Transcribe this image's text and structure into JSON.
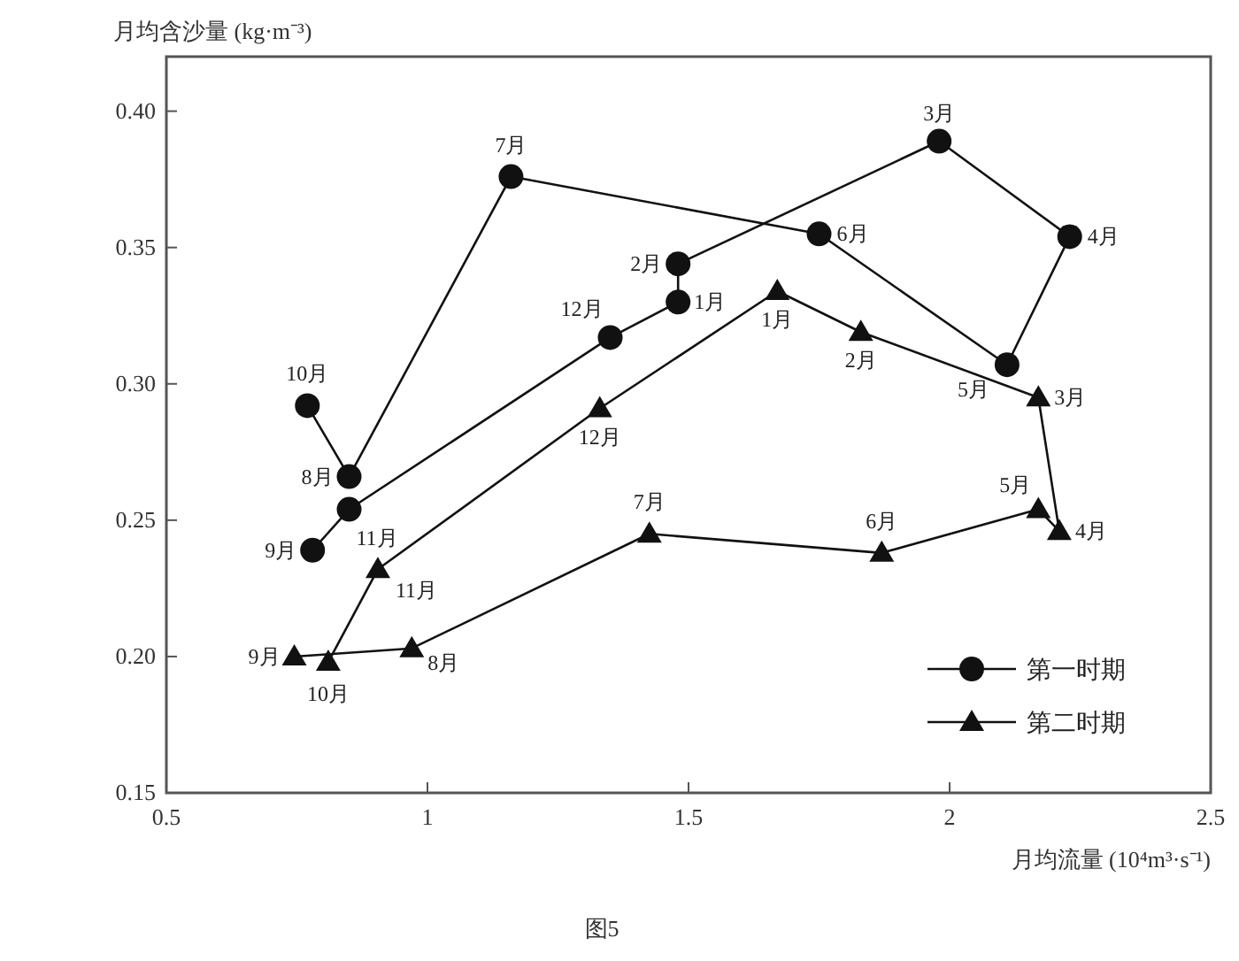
{
  "chart_data": {
    "type": "line",
    "xlabel": "月均流量 (10⁴m³·s⁻¹)",
    "ylabel": "月均含沙量 (kg·m⁻³)",
    "xlim": [
      0.5,
      2.5
    ],
    "xticks": [
      0.5,
      1,
      1.5,
      2,
      2.5
    ],
    "ylim": [
      0.15,
      0.42
    ],
    "yticks": [
      {
        "value": 0.15,
        "label": "0.15"
      },
      {
        "value": 0.2,
        "label": "0.20"
      },
      {
        "value": 0.25,
        "label": "0.25"
      },
      {
        "value": 0.3,
        "label": "0.30"
      },
      {
        "value": 0.35,
        "label": "0.35"
      },
      {
        "value": 0.4,
        "label": "0.40"
      }
    ],
    "grid": false,
    "legend": "bottom right",
    "series": [
      {
        "name": "第一时期",
        "color": "#111111",
        "marker": "circle",
        "x": [
          0.77,
          0.85,
          1.16,
          1.75,
          2.11,
          2.23,
          1.98,
          1.48,
          1.48,
          1.35,
          0.85,
          0.78
        ],
        "values": [
          0.292,
          0.266,
          0.376,
          0.355,
          0.307,
          0.354,
          0.389,
          0.344,
          0.33,
          0.317,
          0.254,
          0.239
        ]
      },
      {
        "name": "第二时期",
        "color": "#111111",
        "marker": "triangle",
        "x": [
          0.81,
          0.905,
          1.33,
          1.67,
          1.83,
          2.17,
          2.21,
          2.17,
          1.87,
          1.425,
          0.97,
          0.745
        ],
        "values": [
          0.198,
          0.232,
          0.291,
          0.334,
          0.319,
          0.295,
          0.246,
          0.254,
          0.238,
          0.245,
          0.203,
          0.2
        ]
      }
    ],
    "annotations": [
      {
        "text": "1月",
        "x": 1.48,
        "y": 0.33
      },
      {
        "text": "2月",
        "x": 1.48,
        "y": 0.344
      },
      {
        "text": "3月",
        "x": 1.98,
        "y": 0.389
      },
      {
        "text": "4月",
        "x": 2.23,
        "y": 0.354
      },
      {
        "text": "5月",
        "x": 2.11,
        "y": 0.307
      },
      {
        "text": "6月",
        "x": 1.75,
        "y": 0.355
      },
      {
        "text": "7月",
        "x": 1.16,
        "y": 0.376
      },
      {
        "text": "8月",
        "x": 0.85,
        "y": 0.266
      },
      {
        "text": "9月",
        "x": 0.78,
        "y": 0.239
      },
      {
        "text": "10月",
        "x": 0.77,
        "y": 0.292
      },
      {
        "text": "11月",
        "x": 0.85,
        "y": 0.254
      },
      {
        "text": "12月",
        "x": 1.35,
        "y": 0.317
      },
      {
        "text": "1月",
        "x": 1.67,
        "y": 0.334
      },
      {
        "text": "2月",
        "x": 1.83,
        "y": 0.319
      },
      {
        "text": "3月",
        "x": 2.17,
        "y": 0.295
      },
      {
        "text": "4月",
        "x": 2.21,
        "y": 0.246
      },
      {
        "text": "5月",
        "x": 2.17,
        "y": 0.254
      },
      {
        "text": "6月",
        "x": 1.87,
        "y": 0.238
      },
      {
        "text": "7月",
        "x": 1.425,
        "y": 0.245
      },
      {
        "text": "8月",
        "x": 0.97,
        "y": 0.203
      },
      {
        "text": "9月",
        "x": 0.745,
        "y": 0.2
      },
      {
        "text": "10月",
        "x": 0.81,
        "y": 0.198
      },
      {
        "text": "11月",
        "x": 0.905,
        "y": 0.232
      },
      {
        "text": "12月",
        "x": 1.33,
        "y": 0.291
      },
      "图5"
    ]
  }
}
